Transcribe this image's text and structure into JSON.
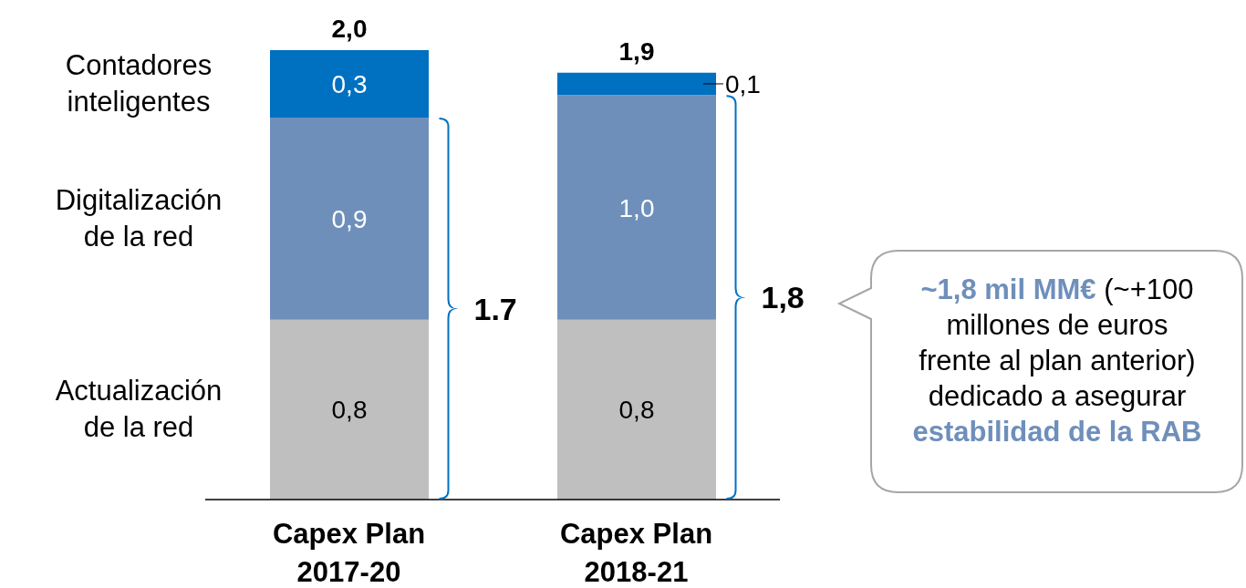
{
  "chart_data": {
    "type": "bar",
    "stacked": true,
    "categories": [
      "Capex Plan 2017-20",
      "Capex Plan 2018-21"
    ],
    "series": [
      {
        "name": "Actualización de la red",
        "color": "#bfbfbf",
        "values": [
          0.8,
          0.8
        ],
        "value_labels": [
          "0,8",
          "0,8"
        ]
      },
      {
        "name": "Digitalización de la red",
        "color": "#6f8fbb",
        "values": [
          0.9,
          1.0
        ],
        "value_labels": [
          "0,9",
          "1,0"
        ]
      },
      {
        "name": "Contadores inteligentes",
        "color": "#0070c0",
        "values": [
          0.3,
          0.1
        ],
        "value_labels": [
          "0,3",
          "0,1"
        ]
      }
    ],
    "totals": [
      "2,0",
      "1,9"
    ],
    "annotations": [
      "1.7",
      "1,8",
      "~1,8 mil MM€",
      "(~+100 millones de euros frente al plan anterior) dedicado a asegurar",
      "estabilidad de la RAB"
    ]
  }
}
